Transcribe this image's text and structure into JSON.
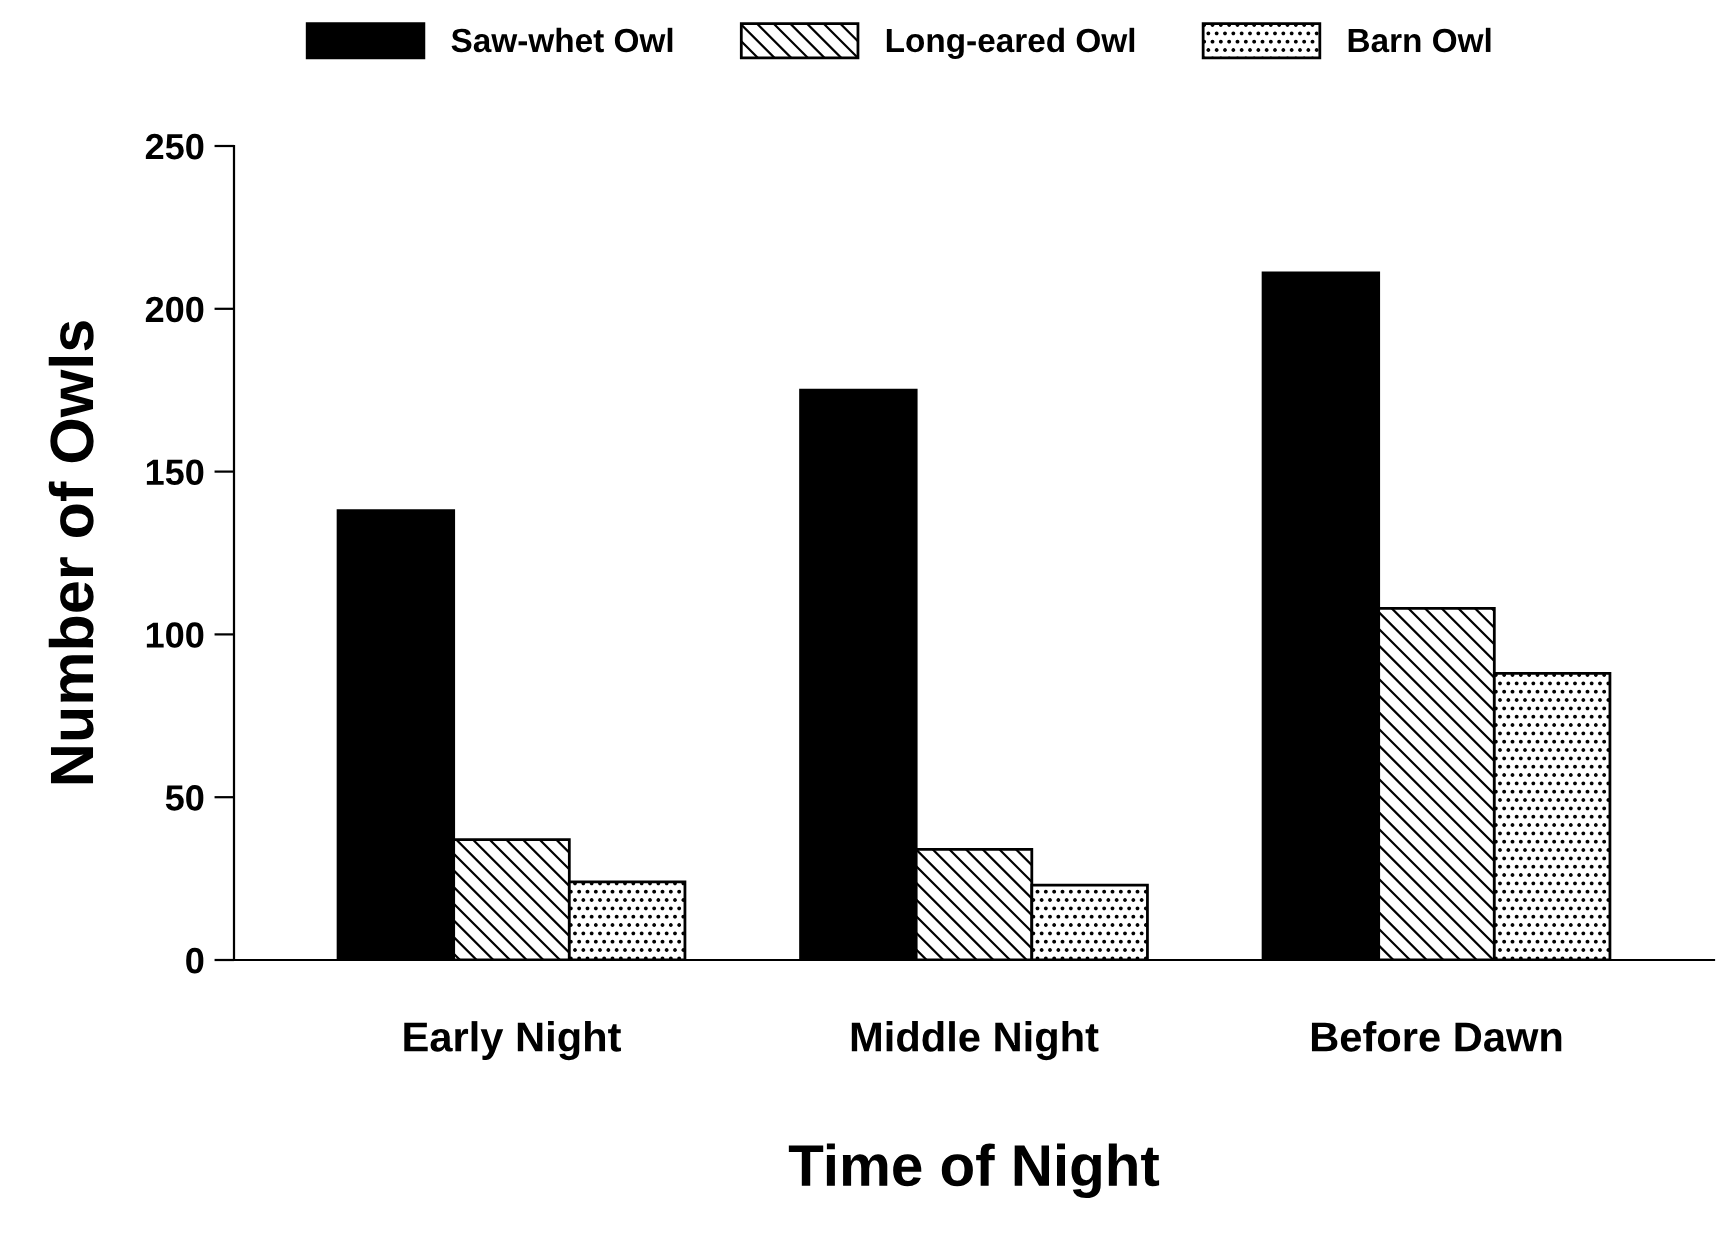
{
  "chart_data": {
    "type": "bar",
    "xlabel": "Time of Night",
    "ylabel": "Number of Owls",
    "categories": [
      "Early Night",
      "Middle Night",
      "Before Dawn"
    ],
    "series": [
      {
        "name": "Saw-whet Owl",
        "color": "#000000",
        "values": [
          138,
          175,
          211
        ]
      },
      {
        "name": "Long-eared Owl",
        "color": "#000000",
        "values": [
          37,
          34,
          108
        ]
      },
      {
        "name": "Barn Owl",
        "color": "#000000",
        "values": [
          24,
          23,
          88
        ]
      }
    ],
    "ylim": [
      0,
      250
    ],
    "yticks": [
      0,
      50,
      100,
      150,
      200,
      250
    ],
    "grid": false,
    "legend": "top"
  }
}
